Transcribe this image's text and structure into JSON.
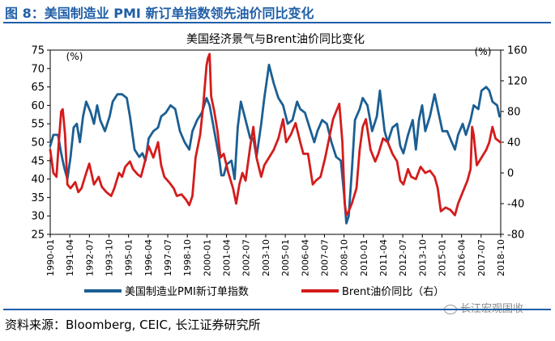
{
  "header": {
    "figure_title": "图 8：美国制造业 PMI 新订单指数领先油价同比变化"
  },
  "footer": {
    "source": "资料来源：Bloomberg, CEIC, 长江证券研究所",
    "watermark": "长江宏观固收"
  },
  "colors": {
    "title_blue": "#1f5fa8",
    "pmi_line": "#1b5f93",
    "brent_line": "#d41c1c"
  },
  "chart_data": {
    "type": "line",
    "title": "美国经济景气与Brent油价同比变化",
    "left_unit": "(%)",
    "right_unit": "(%)",
    "left_axis": {
      "min": 25,
      "max": 75,
      "ticks": [
        "75",
        "70",
        "65",
        "60",
        "55",
        "50",
        "45",
        "40",
        "35",
        "30",
        "25"
      ]
    },
    "right_axis": {
      "min": -80,
      "max": 160,
      "ticks": [
        "160",
        "120",
        "80",
        "40",
        "0",
        "-40",
        "-80"
      ]
    },
    "x_start": 1990.0,
    "x_end": 2018.83,
    "x_tick_labels": [
      "1990-01",
      "1991-04",
      "1992-07",
      "1993-10",
      "1995-01",
      "1996-04",
      "1997-07",
      "1998-10",
      "2000-01",
      "2001-04",
      "2002-07",
      "2003-10",
      "2005-01",
      "2006-04",
      "2007-07",
      "2008-10",
      "2010-01",
      "2011-04",
      "2012-07",
      "2013-10",
      "2015-01",
      "2016-04",
      "2017-07",
      "2018-10"
    ],
    "series": [
      {
        "name": "美国制造业PMI新订单指数",
        "axis": "left",
        "points": [
          [
            1990.0,
            49
          ],
          [
            1990.2,
            52
          ],
          [
            1990.5,
            52
          ],
          [
            1990.7,
            47
          ],
          [
            1990.9,
            43
          ],
          [
            1991.1,
            40
          ],
          [
            1991.3,
            46
          ],
          [
            1991.5,
            54
          ],
          [
            1991.7,
            55
          ],
          [
            1991.9,
            50
          ],
          [
            1992.1,
            57
          ],
          [
            1992.3,
            61
          ],
          [
            1992.6,
            58
          ],
          [
            1992.8,
            55
          ],
          [
            1993.0,
            60
          ],
          [
            1993.2,
            56
          ],
          [
            1993.5,
            53
          ],
          [
            1993.8,
            57
          ],
          [
            1994.0,
            61
          ],
          [
            1994.3,
            63
          ],
          [
            1994.6,
            63
          ],
          [
            1994.9,
            62
          ],
          [
            1995.1,
            57
          ],
          [
            1995.4,
            48
          ],
          [
            1995.7,
            46
          ],
          [
            1995.9,
            47
          ],
          [
            1996.1,
            45
          ],
          [
            1996.3,
            51
          ],
          [
            1996.6,
            53
          ],
          [
            1996.9,
            54
          ],
          [
            1997.1,
            57
          ],
          [
            1997.4,
            58
          ],
          [
            1997.7,
            60
          ],
          [
            1998.0,
            59
          ],
          [
            1998.3,
            53
          ],
          [
            1998.6,
            50
          ],
          [
            1998.9,
            48
          ],
          [
            1999.1,
            53
          ],
          [
            1999.4,
            56
          ],
          [
            1999.7,
            58
          ],
          [
            2000.0,
            62
          ],
          [
            2000.2,
            60
          ],
          [
            2000.5,
            53
          ],
          [
            2000.8,
            46
          ],
          [
            2000.95,
            41
          ],
          [
            2001.1,
            41
          ],
          [
            2001.3,
            44
          ],
          [
            2001.6,
            45
          ],
          [
            2001.8,
            40
          ],
          [
            2002.0,
            54
          ],
          [
            2002.2,
            61
          ],
          [
            2002.5,
            56
          ],
          [
            2002.8,
            51
          ],
          [
            2003.0,
            51
          ],
          [
            2003.2,
            46
          ],
          [
            2003.5,
            55
          ],
          [
            2003.7,
            62
          ],
          [
            2003.9,
            68
          ],
          [
            2004.0,
            71
          ],
          [
            2004.3,
            66
          ],
          [
            2004.6,
            62
          ],
          [
            2004.9,
            60
          ],
          [
            2005.2,
            55
          ],
          [
            2005.5,
            56
          ],
          [
            2005.8,
            61
          ],
          [
            2006.0,
            59
          ],
          [
            2006.3,
            58
          ],
          [
            2006.6,
            54
          ],
          [
            2006.9,
            50
          ],
          [
            2007.1,
            53
          ],
          [
            2007.4,
            56
          ],
          [
            2007.7,
            55
          ],
          [
            2008.0,
            50
          ],
          [
            2008.3,
            46
          ],
          [
            2008.6,
            45
          ],
          [
            2008.8,
            36
          ],
          [
            2008.95,
            28
          ],
          [
            2009.1,
            30
          ],
          [
            2009.3,
            42
          ],
          [
            2009.5,
            56
          ],
          [
            2009.8,
            59
          ],
          [
            2010.0,
            62
          ],
          [
            2010.3,
            60
          ],
          [
            2010.6,
            53
          ],
          [
            2010.9,
            57
          ],
          [
            2011.1,
            64
          ],
          [
            2011.4,
            53
          ],
          [
            2011.6,
            50
          ],
          [
            2011.9,
            54
          ],
          [
            2012.2,
            55
          ],
          [
            2012.4,
            49
          ],
          [
            2012.6,
            47
          ],
          [
            2012.9,
            52
          ],
          [
            2013.2,
            56
          ],
          [
            2013.4,
            48
          ],
          [
            2013.6,
            56
          ],
          [
            2013.8,
            60
          ],
          [
            2014.0,
            53
          ],
          [
            2014.3,
            57
          ],
          [
            2014.6,
            63
          ],
          [
            2014.9,
            57
          ],
          [
            2015.1,
            53
          ],
          [
            2015.4,
            53
          ],
          [
            2015.7,
            50
          ],
          [
            2015.9,
            48
          ],
          [
            2016.1,
            52
          ],
          [
            2016.4,
            55
          ],
          [
            2016.6,
            52
          ],
          [
            2016.9,
            56
          ],
          [
            2017.1,
            60
          ],
          [
            2017.4,
            59
          ],
          [
            2017.6,
            64
          ],
          [
            2017.9,
            65
          ],
          [
            2018.1,
            64
          ],
          [
            2018.3,
            61
          ],
          [
            2018.6,
            60
          ],
          [
            2018.75,
            57
          ]
        ]
      },
      {
        "name": "Brent油价同比（右）",
        "axis": "right",
        "points": [
          [
            1990.0,
            30
          ],
          [
            1990.2,
            0
          ],
          [
            1990.4,
            -5
          ],
          [
            1990.55,
            40
          ],
          [
            1990.7,
            80
          ],
          [
            1990.8,
            83
          ],
          [
            1990.95,
            50
          ],
          [
            1991.1,
            -15
          ],
          [
            1991.3,
            -20
          ],
          [
            1991.6,
            -12
          ],
          [
            1991.8,
            -25
          ],
          [
            1992.0,
            -20
          ],
          [
            1992.3,
            0
          ],
          [
            1992.5,
            12
          ],
          [
            1992.8,
            -15
          ],
          [
            1993.1,
            -5
          ],
          [
            1993.3,
            -18
          ],
          [
            1993.6,
            -25
          ],
          [
            1993.9,
            -30
          ],
          [
            1994.1,
            -20
          ],
          [
            1994.4,
            0
          ],
          [
            1994.6,
            -5
          ],
          [
            1994.8,
            8
          ],
          [
            1995.1,
            15
          ],
          [
            1995.3,
            5
          ],
          [
            1995.6,
            -2
          ],
          [
            1995.8,
            -5
          ],
          [
            1996.0,
            10
          ],
          [
            1996.3,
            35
          ],
          [
            1996.6,
            20
          ],
          [
            1996.9,
            40
          ],
          [
            1997.1,
            10
          ],
          [
            1997.3,
            -5
          ],
          [
            1997.6,
            -12
          ],
          [
            1997.9,
            -20
          ],
          [
            1998.1,
            -30
          ],
          [
            1998.4,
            -28
          ],
          [
            1998.7,
            -35
          ],
          [
            1998.9,
            -42
          ],
          [
            1999.1,
            -30
          ],
          [
            1999.3,
            20
          ],
          [
            1999.6,
            50
          ],
          [
            1999.8,
            90
          ],
          [
            2000.0,
            140
          ],
          [
            2000.1,
            150
          ],
          [
            2000.2,
            155
          ],
          [
            2000.3,
            100
          ],
          [
            2000.5,
            80
          ],
          [
            2000.7,
            55
          ],
          [
            2000.9,
            20
          ],
          [
            2001.1,
            25
          ],
          [
            2001.4,
            0
          ],
          [
            2001.7,
            -20
          ],
          [
            2001.9,
            -40
          ],
          [
            2002.1,
            -15
          ],
          [
            2002.3,
            0
          ],
          [
            2002.5,
            -10
          ],
          [
            2002.8,
            35
          ],
          [
            2003.0,
            60
          ],
          [
            2003.2,
            20
          ],
          [
            2003.5,
            -5
          ],
          [
            2003.7,
            10
          ],
          [
            2004.0,
            20
          ],
          [
            2004.3,
            30
          ],
          [
            2004.6,
            45
          ],
          [
            2004.9,
            70
          ],
          [
            2005.1,
            40
          ],
          [
            2005.4,
            50
          ],
          [
            2005.7,
            65
          ],
          [
            2006.0,
            40
          ],
          [
            2006.2,
            25
          ],
          [
            2006.5,
            25
          ],
          [
            2006.8,
            -15
          ],
          [
            2007.0,
            -10
          ],
          [
            2007.3,
            -5
          ],
          [
            2007.6,
            20
          ],
          [
            2007.9,
            50
          ],
          [
            2008.1,
            70
          ],
          [
            2008.3,
            80
          ],
          [
            2008.5,
            90
          ],
          [
            2008.7,
            40
          ],
          [
            2008.85,
            -40
          ],
          [
            2008.95,
            -55
          ],
          [
            2009.1,
            -50
          ],
          [
            2009.3,
            -40
          ],
          [
            2009.6,
            -20
          ],
          [
            2009.8,
            30
          ],
          [
            2010.0,
            60
          ],
          [
            2010.2,
            70
          ],
          [
            2010.5,
            30
          ],
          [
            2010.8,
            15
          ],
          [
            2011.0,
            25
          ],
          [
            2011.3,
            45
          ],
          [
            2011.6,
            40
          ],
          [
            2011.9,
            25
          ],
          [
            2012.2,
            15
          ],
          [
            2012.4,
            -10
          ],
          [
            2012.6,
            -15
          ],
          [
            2012.9,
            5
          ],
          [
            2013.1,
            -5
          ],
          [
            2013.4,
            -8
          ],
          [
            2013.7,
            8
          ],
          [
            2014.0,
            0
          ],
          [
            2014.3,
            3
          ],
          [
            2014.6,
            -5
          ],
          [
            2014.8,
            -20
          ],
          [
            2015.0,
            -50
          ],
          [
            2015.3,
            -45
          ],
          [
            2015.6,
            -48
          ],
          [
            2015.9,
            -55
          ],
          [
            2016.1,
            -40
          ],
          [
            2016.4,
            -25
          ],
          [
            2016.7,
            -10
          ],
          [
            2016.9,
            5
          ],
          [
            2017.0,
            60
          ],
          [
            2017.1,
            50
          ],
          [
            2017.3,
            10
          ],
          [
            2017.6,
            20
          ],
          [
            2017.9,
            30
          ],
          [
            2018.1,
            40
          ],
          [
            2018.3,
            60
          ],
          [
            2018.5,
            45
          ],
          [
            2018.8,
            40
          ]
        ]
      }
    ]
  }
}
